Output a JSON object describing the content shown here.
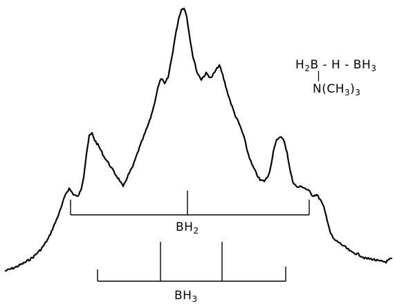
{
  "molecule": {
    "line1": {
      "a": "H",
      "a_sub": "2",
      "b": "B",
      "c": " - H - BH",
      "c_sub": "3"
    },
    "bond": "|",
    "line2": {
      "a": "N(CH",
      "a_sub": "3",
      "b": ")",
      "b_sub": "3"
    }
  },
  "labels": {
    "bh2": {
      "text": "BH",
      "sub": "2"
    },
    "bh3": {
      "text": "BH",
      "sub": "3"
    }
  }
}
